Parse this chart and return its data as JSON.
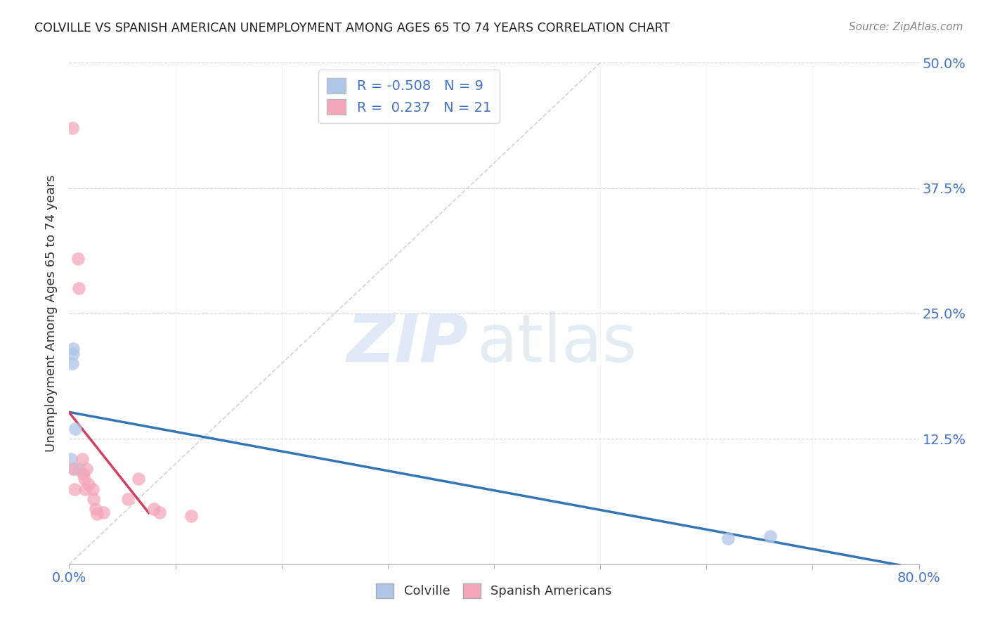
{
  "title": "COLVILLE VS SPANISH AMERICAN UNEMPLOYMENT AMONG AGES 65 TO 74 YEARS CORRELATION CHART",
  "source": "Source: ZipAtlas.com",
  "ylabel": "Unemployment Among Ages 65 to 74 years",
  "xlim": [
    0.0,
    0.8
  ],
  "ylim": [
    0.0,
    0.5
  ],
  "yticks": [
    0.0,
    0.125,
    0.25,
    0.375,
    0.5
  ],
  "ytick_labels": [
    "",
    "12.5%",
    "25.0%",
    "37.5%",
    "50.0%"
  ],
  "xtick_first_label": "0.0%",
  "xtick_last_label": "80.0%",
  "colville_x": [
    0.004,
    0.006,
    0.004,
    0.002,
    0.003,
    0.005,
    0.009,
    0.62,
    0.66
  ],
  "colville_y": [
    0.215,
    0.135,
    0.21,
    0.105,
    0.2,
    0.095,
    0.095,
    0.026,
    0.028
  ],
  "spanish_x": [
    0.003,
    0.004,
    0.005,
    0.008,
    0.009,
    0.012,
    0.013,
    0.014,
    0.015,
    0.016,
    0.018,
    0.022,
    0.023,
    0.025,
    0.026,
    0.032,
    0.055,
    0.065,
    0.08,
    0.085,
    0.115
  ],
  "spanish_y": [
    0.435,
    0.095,
    0.075,
    0.305,
    0.275,
    0.105,
    0.09,
    0.085,
    0.075,
    0.095,
    0.08,
    0.075,
    0.065,
    0.055,
    0.05,
    0.052,
    0.065,
    0.085,
    0.055,
    0.052,
    0.048
  ],
  "colville_color": "#aec6e8",
  "spanish_color": "#f4a7b9",
  "colville_line_color": "#3575b5",
  "spanish_line_color": "#d04060",
  "diagonal_color": "#c8c8c8",
  "R_colville": -0.508,
  "N_colville": 9,
  "R_spanish": 0.237,
  "N_spanish": 21,
  "watermark_zip": "ZIP",
  "watermark_atlas": "atlas",
  "background_color": "#ffffff",
  "tick_color": "#4472c4",
  "grid_color": "#d0d0d0",
  "marker_size": 180
}
